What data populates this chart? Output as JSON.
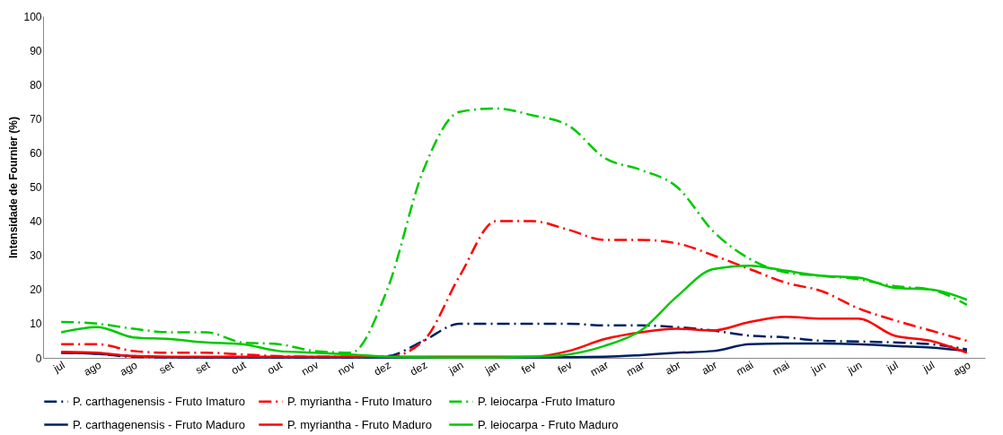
{
  "chart_data": {
    "type": "line",
    "ylabel": "Intensidade de Fournier (%)",
    "categories": [
      "jul",
      "ago",
      "ago",
      "set",
      "set",
      "out",
      "out",
      "nov",
      "nov",
      "dez",
      "dez",
      "jan",
      "jan",
      "fev",
      "fev",
      "mar",
      "mar",
      "abr",
      "abr",
      "mai",
      "mai",
      "jun",
      "jun",
      "jul",
      "jul",
      "ago"
    ],
    "ylim": [
      0,
      100
    ],
    "yticks": [
      0,
      10,
      20,
      30,
      40,
      50,
      60,
      70,
      80,
      90,
      100
    ],
    "grid": false,
    "legend": "bottom",
    "marker": "none",
    "series": [
      {
        "name": "P. carthagenensis - Fruto Imaturo",
        "color": "#002060",
        "line_style": "dashed",
        "values": [
          1.5,
          1.2,
          0.3,
          0.2,
          0.2,
          0.1,
          0.1,
          0.1,
          0.1,
          0.5,
          5,
          10,
          10,
          10,
          10,
          9.5,
          9.5,
          9,
          8,
          6.5,
          6,
          5,
          4.8,
          4.5,
          4,
          2.5
        ]
      },
      {
        "name": "P. myriantha - Fruto Imaturo",
        "color": "#ff0000",
        "line_style": "dashed",
        "values": [
          4,
          4,
          2,
          1.5,
          1.5,
          1,
          0.5,
          0.3,
          0.3,
          0.2,
          5,
          24,
          40,
          40,
          37.5,
          34.5,
          34.5,
          33.5,
          30,
          26,
          22,
          19.5,
          14.5,
          11,
          8,
          5
        ]
      },
      {
        "name": "P. leiocarpa -Fruto Imaturo",
        "color": "#00c800",
        "line_style": "dashed",
        "values": [
          10.5,
          10,
          8.5,
          7.5,
          7.5,
          4.5,
          4,
          2,
          1.5,
          20,
          55,
          72,
          73,
          71,
          68,
          58.5,
          55,
          50,
          37,
          29,
          25,
          24,
          23,
          21,
          20,
          15.5
        ]
      },
      {
        "name": "P. carthagenensis - Fruto Maduro",
        "color": "#002060",
        "line_style": "solid",
        "values": [
          1.5,
          1.2,
          0.5,
          0.2,
          0.1,
          0.1,
          0.1,
          0.1,
          0.1,
          0.1,
          0.1,
          0.1,
          0.1,
          0.1,
          0.2,
          0.3,
          0.8,
          1.5,
          2,
          4,
          4.2,
          4.2,
          4,
          3.5,
          3,
          2
        ]
      },
      {
        "name": "P. myriantha -  Fruto Maduro",
        "color": "#ff0000",
        "line_style": "solid",
        "values": [
          1.8,
          1.5,
          0.5,
          0.3,
          0.3,
          0.3,
          0.3,
          0.3,
          0.3,
          0.3,
          0.3,
          0.3,
          0.3,
          0.3,
          2,
          5.5,
          7.5,
          8.5,
          8,
          10.5,
          12,
          11.5,
          11.5,
          6.5,
          5,
          1.5
        ]
      },
      {
        "name": "P. leiocarpa - Fruto Maduro",
        "color": "#00c800",
        "line_style": "solid",
        "values": [
          7.5,
          9,
          6,
          5.5,
          4.5,
          4,
          2,
          1.5,
          1,
          0.3,
          0.2,
          0.1,
          0.1,
          0.3,
          1,
          3.5,
          8,
          18,
          26,
          27,
          25.5,
          24,
          23.5,
          20.5,
          20,
          17
        ]
      }
    ]
  }
}
